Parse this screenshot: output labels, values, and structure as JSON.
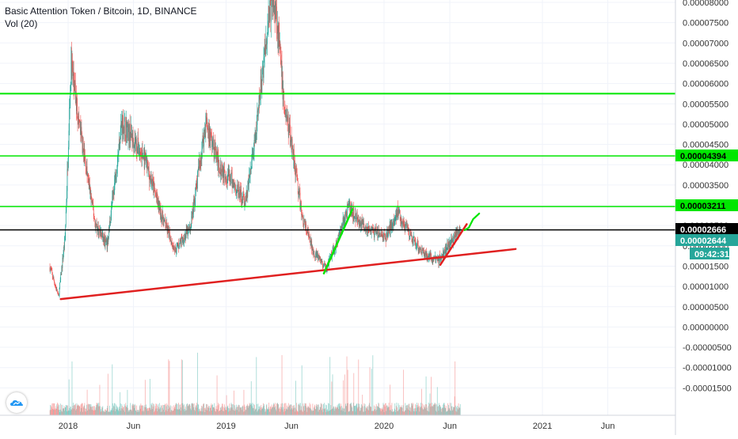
{
  "header": {
    "title": "Basic Attention Token / Bitcoin, 1D, BINANCE",
    "volume_label": "Vol (20)"
  },
  "colors": {
    "up": "#26a69a",
    "down": "#ef5350",
    "green_line": "#00e600",
    "red_line": "#e02020",
    "black_line": "#000000",
    "axis_text": "#333333",
    "grid": "#f0f3fa",
    "price_badge": "#26a69a"
  },
  "chart_data": {
    "type": "candlestick",
    "title": "Basic Attention Token / Bitcoin, 1D, BINANCE",
    "indicator": "Vol (20)",
    "y_axis_ticks": [
      "0.00008000",
      "0.00007500",
      "0.00007000",
      "0.00006500",
      "0.00006000",
      "0.00005500",
      "0.00005000",
      "0.00004500",
      "0.00004000",
      "0.00003500",
      "0.00003000",
      "0.00002500",
      "0.00002000",
      "0.00001500",
      "0.00001000",
      "0.00000500",
      "0.00000000",
      "-0.00000500",
      "-0.00001000",
      "-0.00001500"
    ],
    "x_axis_ticks": [
      "2018",
      "Jun",
      "2019",
      "Jun",
      "2020",
      "Jun",
      "2021",
      "Jun"
    ],
    "ylim": [
      -1.6e-05,
      8.05e-05
    ],
    "price_path": [
      {
        "date": "2017-11-20",
        "price": 1.8e-05
      },
      {
        "date": "2017-12-10",
        "price": 1.1e-05
      },
      {
        "date": "2017-12-25",
        "price": 2.5e-05
      },
      {
        "date": "2018-01-08",
        "price": 6.6e-05
      },
      {
        "date": "2018-01-20",
        "price": 5.6e-05
      },
      {
        "date": "2018-02-10",
        "price": 4.2e-05
      },
      {
        "date": "2018-03-05",
        "price": 2.8e-05
      },
      {
        "date": "2018-04-01",
        "price": 2.3e-05
      },
      {
        "date": "2018-05-05",
        "price": 5.2e-05
      },
      {
        "date": "2018-06-01",
        "price": 4.8e-05
      },
      {
        "date": "2018-07-01",
        "price": 4.2e-05
      },
      {
        "date": "2018-08-05",
        "price": 3e-05
      },
      {
        "date": "2018-09-05",
        "price": 2.2e-05
      },
      {
        "date": "2018-10-10",
        "price": 2.7e-05
      },
      {
        "date": "2018-11-15",
        "price": 5.2e-05
      },
      {
        "date": "2018-12-15",
        "price": 4.2e-05
      },
      {
        "date": "2019-01-15",
        "price": 3.8e-05
      },
      {
        "date": "2019-02-15",
        "price": 3.3e-05
      },
      {
        "date": "2019-03-10",
        "price": 4.8e-05
      },
      {
        "date": "2019-04-10",
        "price": 7.8e-05
      },
      {
        "date": "2019-04-25",
        "price": 8e-05
      },
      {
        "date": "2019-05-15",
        "price": 5.6e-05
      },
      {
        "date": "2019-06-05",
        "price": 4.5e-05
      },
      {
        "date": "2019-06-25",
        "price": 3e-05
      },
      {
        "date": "2019-07-20",
        "price": 2.2e-05
      },
      {
        "date": "2019-08-20",
        "price": 1.75e-05
      },
      {
        "date": "2019-09-15",
        "price": 2.4e-05
      },
      {
        "date": "2019-10-10",
        "price": 3.2e-05
      },
      {
        "date": "2019-11-10",
        "price": 2.8e-05
      },
      {
        "date": "2019-12-10",
        "price": 2.6e-05
      },
      {
        "date": "2020-01-05",
        "price": 2.5e-05
      },
      {
        "date": "2020-02-01",
        "price": 3.1e-05
      },
      {
        "date": "2020-03-01",
        "price": 2.5e-05
      },
      {
        "date": "2020-04-05",
        "price": 2.1e-05
      },
      {
        "date": "2020-05-05",
        "price": 1.95e-05
      },
      {
        "date": "2020-06-10",
        "price": 2.5e-05
      },
      {
        "date": "2020-06-25",
        "price": 2.65e-05
      }
    ],
    "horizontal_lines": [
      {
        "price": 5.85e-05,
        "color": "green",
        "label": ""
      },
      {
        "price": 4.394e-05,
        "color": "green",
        "label": "0.00004394"
      },
      {
        "price": 3.211e-05,
        "color": "green",
        "label": "0.00003211"
      },
      {
        "price": 2.666e-05,
        "color": "black",
        "label": "0.00002666"
      }
    ],
    "trend_lines": [
      {
        "color": "red",
        "from": {
          "date": "2017-12-15",
          "price": 1.05e-05
        },
        "to": {
          "date": "2020-10-31",
          "price": 2.22e-05
        }
      },
      {
        "color": "green",
        "from": {
          "date": "2019-08-15",
          "price": 1.65e-05
        },
        "to": {
          "date": "2019-10-20",
          "price": 3.15e-05
        }
      },
      {
        "color": "red",
        "from": {
          "date": "2020-05-10",
          "price": 1.85e-05
        },
        "to": {
          "date": "2020-07-10",
          "price": 2.8e-05
        }
      }
    ],
    "projection": [
      {
        "date": "2020-07-05",
        "price": 2.66e-05
      },
      {
        "date": "2020-07-15",
        "price": 2.72e-05
      },
      {
        "date": "2020-07-25",
        "price": 2.92e-05
      },
      {
        "date": "2020-08-08",
        "price": 3.05e-05
      }
    ],
    "price_badges": [
      {
        "label": "0.00004394",
        "style": "green"
      },
      {
        "label": "0.00003211",
        "style": "green"
      },
      {
        "label": "0.00002666",
        "style": "black"
      },
      {
        "label": "0.00002644",
        "style": "teal"
      },
      {
        "label": "09:42:31",
        "style": "teal"
      }
    ]
  }
}
